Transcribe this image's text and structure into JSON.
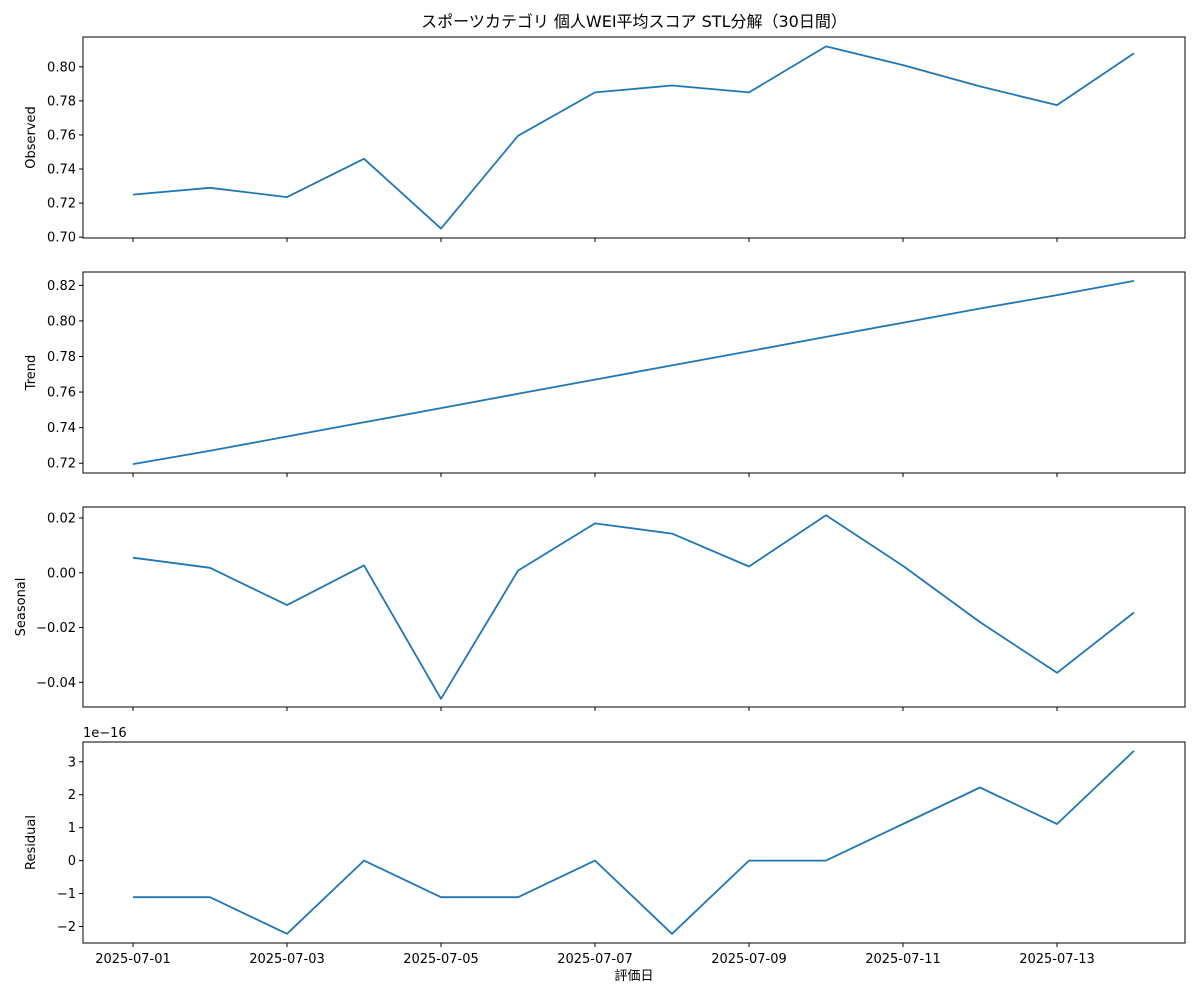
{
  "chart_data": {
    "type": "line",
    "title": "スポーツカテゴリ 個人WEI平均スコア STL分解（30日間）",
    "xlabel": "評価日",
    "x": [
      "2025-07-01",
      "2025-07-02",
      "2025-07-03",
      "2025-07-04",
      "2025-07-05",
      "2025-07-06",
      "2025-07-07",
      "2025-07-08",
      "2025-07-09",
      "2025-07-10",
      "2025-07-11",
      "2025-07-12",
      "2025-07-13",
      "2025-07-14"
    ],
    "xticks": [
      "2025-07-01",
      "2025-07-03",
      "2025-07-05",
      "2025-07-07",
      "2025-07-09",
      "2025-07-11",
      "2025-07-13"
    ],
    "line_color": "#1f77b4",
    "grid": false,
    "panels": [
      {
        "ylabel": "Observed",
        "values": [
          0.725,
          0.729,
          0.7235,
          0.746,
          0.705,
          0.7595,
          0.785,
          0.789,
          0.785,
          0.812,
          0.801,
          0.7885,
          0.7775,
          0.808
        ],
        "ylim": [
          0.6995,
          0.8175
        ],
        "yticks": [
          0.7,
          0.72,
          0.74,
          0.76,
          0.78,
          0.8
        ],
        "ytick_labels": [
          "0.70",
          "0.72",
          "0.74",
          "0.76",
          "0.78",
          "0.80"
        ],
        "offset_label": ""
      },
      {
        "ylabel": "Trend",
        "values": [
          0.7195,
          0.727,
          0.735,
          0.743,
          0.751,
          0.759,
          0.767,
          0.775,
          0.783,
          0.791,
          0.799,
          0.807,
          0.8145,
          0.8225
        ],
        "ylim": [
          0.7145,
          0.8275
        ],
        "yticks": [
          0.72,
          0.74,
          0.76,
          0.78,
          0.8,
          0.82
        ],
        "ytick_labels": [
          "0.72",
          "0.74",
          "0.76",
          "0.78",
          "0.80",
          "0.82"
        ],
        "offset_label": ""
      },
      {
        "ylabel": "Seasonal",
        "values": [
          0.0055,
          0.0018,
          -0.0118,
          0.0027,
          -0.046,
          0.0008,
          0.018,
          0.0143,
          0.0023,
          0.021,
          0.0025,
          -0.018,
          -0.0365,
          -0.0145
        ],
        "ylim": [
          -0.049,
          0.024
        ],
        "yticks": [
          0.02,
          0.0,
          -0.02,
          -0.04
        ],
        "ytick_labels": [
          "0.02",
          "0.00",
          "−0.02",
          "−0.04"
        ],
        "offset_label": ""
      },
      {
        "ylabel": "Residual",
        "values": [
          -1.11,
          -1.11,
          -2.22,
          0,
          -1.11,
          -1.11,
          0,
          -2.22,
          0,
          0,
          1.11,
          2.22,
          1.11,
          3.33
        ],
        "ylim": [
          -2.5,
          3.6
        ],
        "yticks": [
          3,
          2,
          1,
          0,
          -1,
          -2
        ],
        "ytick_labels": [
          "3",
          "2",
          "1",
          "0",
          "−1",
          "−2"
        ],
        "offset_label": "1e−16"
      }
    ]
  }
}
